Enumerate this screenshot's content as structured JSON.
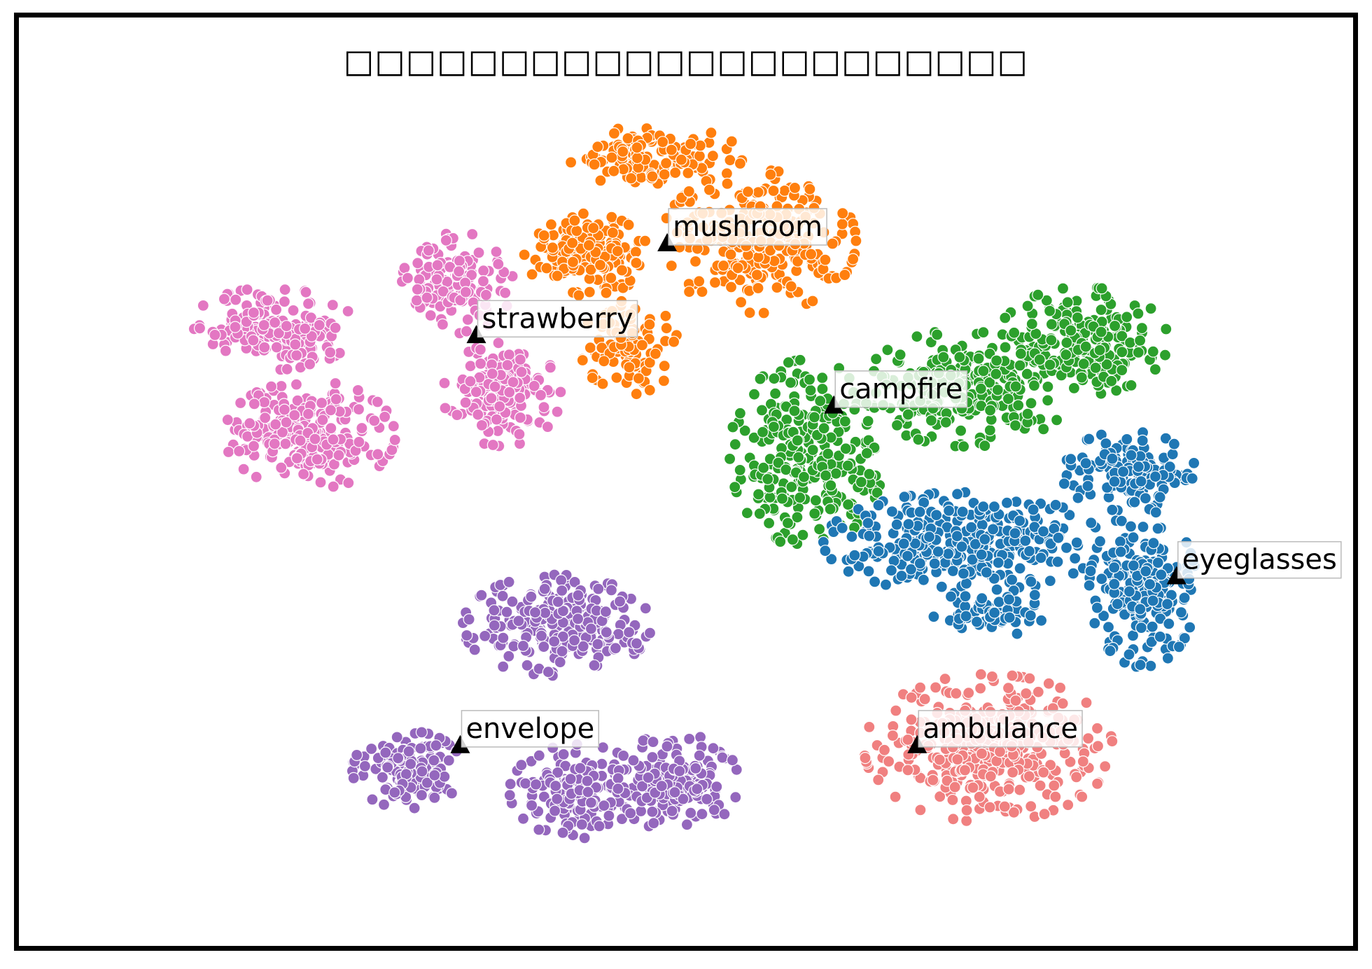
{
  "chart_data": {
    "type": "scatter",
    "title": "□□□□□□□□□□□□□□□□□□□□□□",
    "xlabel": "",
    "ylabel": "",
    "xlim": [
      0,
      100
    ],
    "ylim": [
      0,
      100
    ],
    "grid": false,
    "axes_visible": false,
    "marker_edge_color": "#ffffff",
    "centroid_marker": "triangle",
    "centroid_color": "#000000",
    "series": [
      {
        "name": "mushroom",
        "color": "#ff7f0e",
        "centroid": [
          48.6,
          75.3
        ],
        "blobs": [
          {
            "cx": 47.6,
            "cy": 84.7,
            "rx": 5.3,
            "ry": 2.6,
            "n": 140
          },
          {
            "cx": 55.4,
            "cy": 75.6,
            "rx": 5.8,
            "ry": 6.1,
            "n": 300
          },
          {
            "cx": 42.6,
            "cy": 74.2,
            "rx": 3.7,
            "ry": 3.5,
            "n": 170
          },
          {
            "cx": 45.8,
            "cy": 64.3,
            "rx": 2.9,
            "ry": 4.0,
            "n": 110
          }
        ]
      },
      {
        "name": "strawberry",
        "color": "#e377c2",
        "centroid": [
          34.4,
          65.5
        ],
        "blobs": [
          {
            "cx": 19.2,
            "cy": 66.3,
            "rx": 5.0,
            "ry": 3.5,
            "n": 170
          },
          {
            "cx": 22.0,
            "cy": 55.0,
            "rx": 5.1,
            "ry": 4.6,
            "n": 240
          },
          {
            "cx": 33.0,
            "cy": 71.2,
            "rx": 3.3,
            "ry": 4.3,
            "n": 150
          },
          {
            "cx": 36.3,
            "cy": 59.3,
            "rx": 3.5,
            "ry": 4.4,
            "n": 150
          }
        ]
      },
      {
        "name": "campfire",
        "color": "#2ca02c",
        "centroid": [
          61.0,
          58.0
        ],
        "blobs": [
          {
            "cx": 59.0,
            "cy": 53.0,
            "rx": 4.6,
            "ry": 8.0,
            "n": 280
          },
          {
            "cx": 71.0,
            "cy": 60.0,
            "rx": 6.3,
            "ry": 5.0,
            "n": 260
          },
          {
            "cx": 79.5,
            "cy": 65.0,
            "rx": 5.1,
            "ry": 4.6,
            "n": 200
          }
        ]
      },
      {
        "name": "eyeglasses",
        "color": "#1f77b4",
        "centroid": [
          86.5,
          39.8
        ],
        "blobs": [
          {
            "cx": 82.9,
            "cy": 51.1,
            "rx": 4.0,
            "ry": 3.4,
            "n": 150
          },
          {
            "cx": 70.6,
            "cy": 43.5,
            "rx": 8.3,
            "ry": 4.3,
            "n": 330
          },
          {
            "cx": 84.0,
            "cy": 38.6,
            "rx": 3.2,
            "ry": 6.7,
            "n": 190
          },
          {
            "cx": 73.0,
            "cy": 36.0,
            "rx": 3.7,
            "ry": 2.0,
            "n": 70
          }
        ]
      },
      {
        "name": "ambulance",
        "color": "#f08080",
        "centroid": [
          67.2,
          21.8
        ],
        "blobs": [
          {
            "cx": 72.5,
            "cy": 21.6,
            "rx": 7.4,
            "ry": 6.3,
            "n": 380
          }
        ]
      },
      {
        "name": "envelope",
        "color": "#9467bd",
        "centroid": [
          33.2,
          21.8
        ],
        "blobs": [
          {
            "cx": 40.4,
            "cy": 34.7,
            "rx": 5.6,
            "ry": 4.3,
            "n": 260
          },
          {
            "cx": 29.3,
            "cy": 19.3,
            "rx": 3.3,
            "ry": 3.3,
            "n": 150
          },
          {
            "cx": 42.0,
            "cy": 17.0,
            "rx": 4.1,
            "ry": 4.0,
            "n": 170
          },
          {
            "cx": 49.4,
            "cy": 18.0,
            "rx": 3.6,
            "ry": 4.3,
            "n": 170
          }
        ]
      }
    ]
  }
}
